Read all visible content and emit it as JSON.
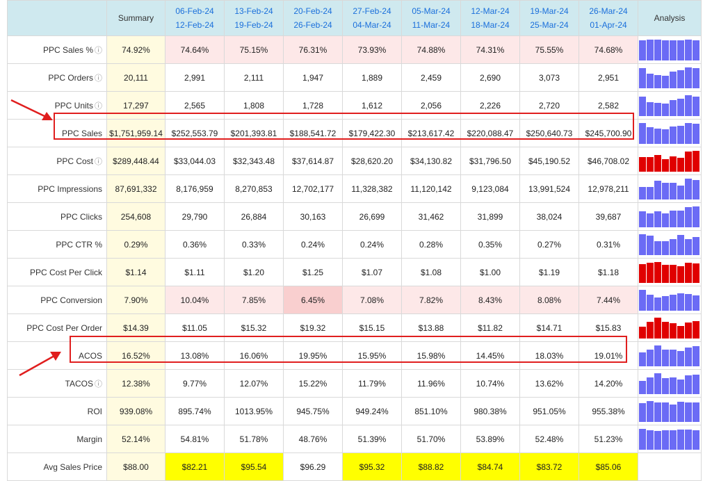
{
  "header": {
    "summary": "Summary",
    "analysis": "Analysis",
    "periods": [
      {
        "start": "06-Feb-24",
        "end": "12-Feb-24"
      },
      {
        "start": "13-Feb-24",
        "end": "19-Feb-24"
      },
      {
        "start": "20-Feb-24",
        "end": "26-Feb-24"
      },
      {
        "start": "27-Feb-24",
        "end": "04-Mar-24"
      },
      {
        "start": "05-Mar-24",
        "end": "11-Mar-24"
      },
      {
        "start": "12-Mar-24",
        "end": "18-Mar-24"
      },
      {
        "start": "19-Mar-24",
        "end": "25-Mar-24"
      },
      {
        "start": "26-Mar-24",
        "end": "01-Apr-24"
      }
    ]
  },
  "colors": {
    "highlight": "#e01e1e",
    "spark_blue": "#6b6bf5",
    "spark_red": "#e00000"
  },
  "rows": [
    {
      "label": "PPC Sales %",
      "info": true,
      "summary": "74.92%",
      "values": [
        "74.64%",
        "75.15%",
        "76.31%",
        "73.93%",
        "74.88%",
        "74.31%",
        "75.55%",
        "74.68%"
      ],
      "nums": [
        74.64,
        75.15,
        76.31,
        73.93,
        74.88,
        74.31,
        75.55,
        74.68
      ],
      "cells": [
        "pink",
        "pink",
        "pink",
        "pink",
        "pink",
        "pink",
        "pink",
        "pink"
      ],
      "spark": "blue"
    },
    {
      "label": "PPC Orders",
      "info": true,
      "summary": "20,111",
      "values": [
        "2,991",
        "2,111",
        "1,947",
        "1,889",
        "2,459",
        "2,690",
        "3,073",
        "2,951"
      ],
      "nums": [
        2991,
        2111,
        1947,
        1889,
        2459,
        2690,
        3073,
        2951
      ],
      "cells": [],
      "spark": "blue"
    },
    {
      "label": "PPC Units",
      "info": true,
      "summary": "17,297",
      "values": [
        "2,565",
        "1,808",
        "1,728",
        "1,612",
        "2,056",
        "2,226",
        "2,720",
        "2,582"
      ],
      "nums": [
        2565,
        1808,
        1728,
        1612,
        2056,
        2226,
        2720,
        2582
      ],
      "cells": [],
      "spark": "blue"
    },
    {
      "label": "PPC Sales",
      "info": false,
      "summary": "$1,751,959.14",
      "values": [
        "$252,553.79",
        "$201,393.81",
        "$188,541.72",
        "$179,422.30",
        "$213,617.42",
        "$220,088.47",
        "$250,640.73",
        "$245,700.90"
      ],
      "nums": [
        252553.79,
        201393.81,
        188541.72,
        179422.3,
        213617.42,
        220088.47,
        250640.73,
        245700.9
      ],
      "cells": [],
      "spark": "blue"
    },
    {
      "label": "PPC Cost",
      "info": true,
      "summary": "$289,448.44",
      "values": [
        "$33,044.03",
        "$32,343.48",
        "$37,614.87",
        "$28,620.20",
        "$34,130.82",
        "$31,796.50",
        "$45,190.52",
        "$46,708.02"
      ],
      "nums": [
        33044.03,
        32343.48,
        37614.87,
        28620.2,
        34130.82,
        31796.5,
        45190.52,
        46708.02
      ],
      "cells": [],
      "spark": "red"
    },
    {
      "label": "PPC Impressions",
      "info": false,
      "summary": "87,691,332",
      "values": [
        "8,176,959",
        "8,270,853",
        "12,702,177",
        "11,328,382",
        "11,120,142",
        "9,123,084",
        "13,991,524",
        "12,978,211"
      ],
      "nums": [
        8176959,
        8270853,
        12702177,
        11328382,
        11120142,
        9123084,
        13991524,
        12978211
      ],
      "cells": [],
      "spark": "blue"
    },
    {
      "label": "PPC Clicks",
      "info": false,
      "summary": "254,608",
      "values": [
        "29,790",
        "26,884",
        "30,163",
        "26,699",
        "31,462",
        "31,899",
        "38,024",
        "39,687"
      ],
      "nums": [
        29790,
        26884,
        30163,
        26699,
        31462,
        31899,
        38024,
        39687
      ],
      "cells": [],
      "spark": "blue"
    },
    {
      "label": "PPC CTR %",
      "info": false,
      "summary": "0.29%",
      "values": [
        "0.36%",
        "0.33%",
        "0.24%",
        "0.24%",
        "0.28%",
        "0.35%",
        "0.27%",
        "0.31%"
      ],
      "nums": [
        0.36,
        0.33,
        0.24,
        0.24,
        0.28,
        0.35,
        0.27,
        0.31
      ],
      "cells": [],
      "spark": "blue"
    },
    {
      "label": "PPC Cost Per Click",
      "info": false,
      "summary": "$1.14",
      "values": [
        "$1.11",
        "$1.20",
        "$1.25",
        "$1.07",
        "$1.08",
        "$1.00",
        "$1.19",
        "$1.18"
      ],
      "nums": [
        1.11,
        1.2,
        1.25,
        1.07,
        1.08,
        1.0,
        1.19,
        1.18
      ],
      "cells": [],
      "spark": "red"
    },
    {
      "label": "PPC Conversion",
      "info": false,
      "summary": "7.90%",
      "values": [
        "10.04%",
        "7.85%",
        "6.45%",
        "7.08%",
        "7.82%",
        "8.43%",
        "8.08%",
        "7.44%"
      ],
      "nums": [
        10.04,
        7.85,
        6.45,
        7.08,
        7.82,
        8.43,
        8.08,
        7.44
      ],
      "cells": [
        "pink",
        "pink",
        "pink2",
        "pink",
        "pink",
        "pink",
        "pink",
        "pink"
      ],
      "spark": "blue"
    },
    {
      "label": "PPC Cost Per Order",
      "info": false,
      "summary": "$14.39",
      "values": [
        "$11.05",
        "$15.32",
        "$19.32",
        "$15.15",
        "$13.88",
        "$11.82",
        "$14.71",
        "$15.83"
      ],
      "nums": [
        11.05,
        15.32,
        19.32,
        15.15,
        13.88,
        11.82,
        14.71,
        15.83
      ],
      "cells": [],
      "spark": "red"
    },
    {
      "label": "ACOS",
      "info": false,
      "summary": "16.52%",
      "values": [
        "13.08%",
        "16.06%",
        "19.95%",
        "15.95%",
        "15.98%",
        "14.45%",
        "18.03%",
        "19.01%"
      ],
      "nums": [
        13.08,
        16.06,
        19.95,
        15.95,
        15.98,
        14.45,
        18.03,
        19.01
      ],
      "cells": [],
      "spark": "blue"
    },
    {
      "label": "TACOS",
      "info": true,
      "summary": "12.38%",
      "values": [
        "9.77%",
        "12.07%",
        "15.22%",
        "11.79%",
        "11.96%",
        "10.74%",
        "13.62%",
        "14.20%"
      ],
      "nums": [
        9.77,
        12.07,
        15.22,
        11.79,
        11.96,
        10.74,
        13.62,
        14.2
      ],
      "cells": [],
      "spark": "blue"
    },
    {
      "label": "ROI",
      "info": false,
      "summary": "939.08%",
      "values": [
        "895.74%",
        "1013.95%",
        "945.75%",
        "949.24%",
        "851.10%",
        "980.38%",
        "951.05%",
        "955.38%"
      ],
      "nums": [
        895.74,
        1013.95,
        945.75,
        949.24,
        851.1,
        980.38,
        951.05,
        955.38
      ],
      "cells": [],
      "spark": "blue"
    },
    {
      "label": "Margin",
      "info": false,
      "summary": "52.14%",
      "values": [
        "54.81%",
        "51.78%",
        "48.76%",
        "51.39%",
        "51.70%",
        "53.89%",
        "52.48%",
        "51.23%"
      ],
      "nums": [
        54.81,
        51.78,
        48.76,
        51.39,
        51.7,
        53.89,
        52.48,
        51.23
      ],
      "cells": [],
      "spark": "blue"
    },
    {
      "label": "Avg Sales Price",
      "info": false,
      "summary": "$88.00",
      "values": [
        "$82.21",
        "$95.54",
        "$96.29",
        "$95.32",
        "$88.82",
        "$84.74",
        "$83.72",
        "$85.06"
      ],
      "nums": [
        82.21,
        95.54,
        96.29,
        95.32,
        88.82,
        84.74,
        83.72,
        85.06
      ],
      "cells": [
        "yel",
        "yel",
        "",
        "yel",
        "yel",
        "yel",
        "yel",
        "yel"
      ],
      "spark": "none"
    }
  ]
}
